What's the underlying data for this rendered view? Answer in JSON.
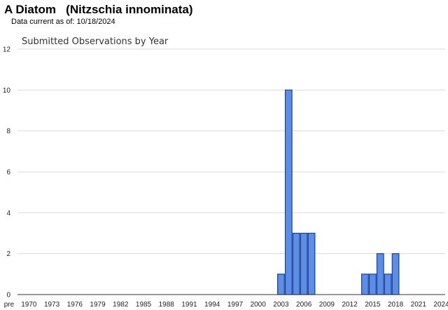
{
  "page": {
    "title": "A Diatom   (Nitzschia innominata)",
    "data_current": "Data current as of: 10/18/2024"
  },
  "chart_data": {
    "type": "bar",
    "title": "Submitted Observations by Year",
    "xlabel": "",
    "ylabel": "",
    "ylim": [
      0,
      12
    ],
    "y_ticks": [
      0,
      2,
      4,
      6,
      8,
      10,
      12
    ],
    "grid": true,
    "legend": "none",
    "x_tick_labels": [
      "pre",
      "1970",
      "1973",
      "1976",
      "1979",
      "1982",
      "1985",
      "1988",
      "1991",
      "1994",
      "1997",
      "2000",
      "2003",
      "2006",
      "2009",
      "2012",
      "2015",
      "2018",
      "2021",
      "2024"
    ],
    "categories": [
      "pre",
      "1970",
      "1971",
      "1972",
      "1973",
      "1974",
      "1975",
      "1976",
      "1977",
      "1978",
      "1979",
      "1980",
      "1981",
      "1982",
      "1983",
      "1984",
      "1985",
      "1986",
      "1987",
      "1988",
      "1989",
      "1990",
      "1991",
      "1992",
      "1993",
      "1994",
      "1995",
      "1996",
      "1997",
      "1998",
      "1999",
      "2000",
      "2001",
      "2002",
      "2003",
      "2004",
      "2005",
      "2006",
      "2007",
      "2008",
      "2009",
      "2010",
      "2011",
      "2012",
      "2013",
      "2014",
      "2015",
      "2016",
      "2017",
      "2018",
      "2019",
      "2020",
      "2021",
      "2022",
      "2023",
      "2024"
    ],
    "values": [
      0,
      0,
      0,
      0,
      0,
      0,
      0,
      0,
      0,
      0,
      0,
      0,
      0,
      0,
      0,
      0,
      0,
      0,
      0,
      0,
      0,
      0,
      0,
      0,
      0,
      0,
      0,
      0,
      0,
      0,
      0,
      0,
      0,
      0,
      1,
      10,
      3,
      3,
      3,
      0,
      0,
      0,
      0,
      0,
      0,
      1,
      1,
      2,
      1,
      2,
      0,
      0,
      0,
      0,
      0,
      0
    ],
    "colors": {
      "bar_fill": "#5b8ee6",
      "bar_stroke": "#1f3f8f",
      "grid": "#d9d9d9",
      "axis": "#333333"
    }
  }
}
